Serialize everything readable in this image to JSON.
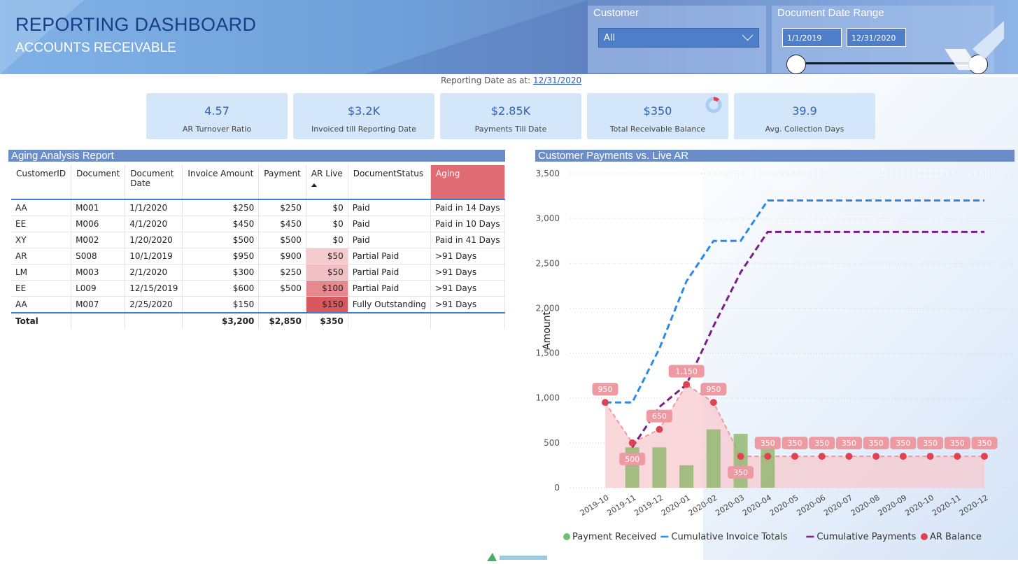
{
  "header": {
    "title": "REPORTING DASHBOARD",
    "subtitle": "ACCOUNTS RECEIVABLE"
  },
  "filters": {
    "customer_label": "Customer",
    "customer_value": "All",
    "date_label": "Document Date Range",
    "date_from": "1/1/2019",
    "date_to": "12/31/2020"
  },
  "reporting_date": {
    "label": "Reporting Date as at:",
    "value": "12/31/2020"
  },
  "kpis": [
    {
      "value": "4.57",
      "label": "AR Turnover Ratio"
    },
    {
      "value": "$3.2K",
      "label": "Invoiced till Reporting Date"
    },
    {
      "value": "$2.85K",
      "label": "Payments Till Date"
    },
    {
      "value": "$350",
      "label": "Total Receivable Balance"
    },
    {
      "value": "39.9",
      "label": "Avg. Collection Days"
    }
  ],
  "aging_report": {
    "title": "Aging Analysis Report",
    "columns": [
      "CustomerID",
      "Document",
      "Document Date",
      "Invoice Amount",
      "Payment",
      "AR Live",
      "DocumentStatus",
      "Aging"
    ],
    "rows": [
      [
        "AA",
        "M001",
        "1/1/2020",
        "$250",
        "$250",
        "$0",
        "Paid",
        "Paid in 14 Days"
      ],
      [
        "EE",
        "M006",
        "4/1/2020",
        "$450",
        "$450",
        "$0",
        "Paid",
        "Paid in 10 Days"
      ],
      [
        "XY",
        "M002",
        "1/20/2020",
        "$500",
        "$500",
        "$0",
        "Paid",
        "Paid in 41 Days"
      ],
      [
        "AR",
        "S008",
        "10/1/2019",
        "$950",
        "$900",
        "$50",
        "Partial Paid",
        ">91 Days"
      ],
      [
        "LM",
        "M003",
        "2/1/2020",
        "$300",
        "$250",
        "$50",
        "Partial Paid",
        ">91 Days"
      ],
      [
        "EE",
        "L009",
        "12/15/2019",
        "$600",
        "$500",
        "$100",
        "Partial Paid",
        ">91 Days"
      ],
      [
        "AA",
        "M007",
        "2/25/2020",
        "$150",
        "",
        "$150",
        "Fully Outstanding",
        ">91 Days"
      ]
    ],
    "total": [
      "Total",
      "",
      "",
      "$3,200",
      "$2,850",
      "$350",
      "",
      ""
    ],
    "ar_live_colors": [
      "",
      "",
      "",
      "#f4cccf",
      "#f1c0c4",
      "#e6888d",
      "#d9585e"
    ],
    "aging_header_color": "#e06b72"
  },
  "chart_data": {
    "type": "line",
    "title": "Customer Payments vs. Live AR",
    "ylabel": "Amount",
    "xlabel": "",
    "ylim": [
      0,
      3500
    ],
    "yticks": [
      "0",
      "500",
      "1,000",
      "1,500",
      "2,000",
      "2,500",
      "3,000",
      "3,500"
    ],
    "yticks_values": [
      0,
      500,
      1000,
      1500,
      2000,
      2500,
      3000,
      3500
    ],
    "categories": [
      "2019-10",
      "2019-11",
      "2019-12",
      "2020-01",
      "2020-02",
      "2020-03",
      "2020-04",
      "2020-05",
      "2020-06",
      "2020-07",
      "2020-08",
      "2020-09",
      "2020-10",
      "2020-11",
      "2020-12"
    ],
    "series": [
      {
        "name": "Payment Received",
        "kind": "bar",
        "color": "#8db56c",
        "values": [
          0,
          450,
          450,
          250,
          650,
          600,
          450,
          0,
          0,
          0,
          0,
          0,
          0,
          0,
          0
        ]
      },
      {
        "name": "Cumulative Invoice Totals",
        "kind": "line",
        "color": "#2b8ae8",
        "values": [
          950,
          950,
          1550,
          2300,
          2750,
          2750,
          3200,
          3200,
          3200,
          3200,
          3200,
          3200,
          3200,
          3200,
          3200
        ]
      },
      {
        "name": "Cumulative Payments",
        "kind": "line",
        "color": "#7a1e8a",
        "values": [
          null,
          450,
          900,
          1150,
          1800,
          2400,
          2850,
          2850,
          2850,
          2850,
          2850,
          2850,
          2850,
          2850,
          2850
        ]
      },
      {
        "name": "AR Balance",
        "kind": "area",
        "color": "#e0434f",
        "values": [
          950,
          500,
          650,
          1150,
          950,
          350,
          350,
          350,
          350,
          350,
          350,
          350,
          350,
          350,
          350
        ]
      }
    ],
    "ar_labels": [
      "950",
      "500",
      "650",
      "1,150",
      "950",
      "350",
      "350",
      "350",
      "350",
      "350",
      "350",
      "350",
      "350",
      "350",
      "350"
    ],
    "grid": true,
    "legend": "bottom"
  },
  "colors": {
    "accent": "#2f62b7",
    "section_bar": "#6a8cc8",
    "kpi_card": "#d3e6fa"
  }
}
